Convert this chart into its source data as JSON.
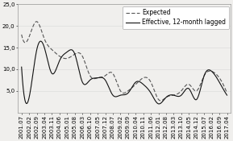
{
  "title": "",
  "xlabel": "",
  "ylabel": "",
  "ylim": [
    0,
    25
  ],
  "yticks": [
    5,
    10,
    15,
    20,
    25
  ],
  "ytick_labels": [
    "5,0",
    "10,0",
    "15,0",
    "20,0",
    "25,0"
  ],
  "background_color": "#f0efed",
  "legend_entries": [
    "Expected",
    "Effective, 12-month lagged"
  ],
  "x_labels": [
    "2001.07",
    "2002.02",
    "2002.09",
    "2003.04",
    "2003.11",
    "2004.06",
    "2005.01",
    "2005.08",
    "2006.03",
    "2006.10",
    "2007.05",
    "2007.12",
    "2008.07",
    "2009.02",
    "2009.09",
    "2010.04",
    "2010.11",
    "2011.06",
    "2012.01",
    "2012.08",
    "2013.03",
    "2013.10",
    "2014.05",
    "2014.12",
    "2015.07",
    "2016.02",
    "2016.09",
    "2017.04"
  ],
  "expected_x": [
    0,
    1,
    2,
    3,
    4,
    5,
    6,
    7,
    8,
    9,
    10,
    11,
    12,
    13,
    14,
    15,
    16,
    17,
    18,
    19,
    20,
    21,
    22,
    23,
    24,
    25,
    26,
    27
  ],
  "expected_y": [
    18.0,
    17.5,
    21.0,
    17.0,
    14.5,
    13.0,
    12.5,
    13.5,
    13.0,
    8.5,
    8.0,
    8.5,
    9.0,
    5.0,
    5.0,
    6.5,
    8.0,
    7.0,
    3.0,
    3.5,
    4.0,
    5.0,
    6.5,
    5.0,
    8.5,
    9.5,
    8.0,
    4.5
  ],
  "effective_x": [
    0,
    1,
    2,
    3,
    4,
    5,
    6,
    7,
    8,
    9,
    10,
    11,
    12,
    13,
    14,
    15,
    16,
    17,
    18,
    19,
    20,
    21,
    22,
    23,
    24,
    25,
    26,
    27
  ],
  "effective_y": [
    10.5,
    3.5,
    14.5,
    15.0,
    9.0,
    12.0,
    14.0,
    13.5,
    7.0,
    7.5,
    8.0,
    7.5,
    4.0,
    4.0,
    4.5,
    7.0,
    6.5,
    4.5,
    2.0,
    3.5,
    4.0,
    4.0,
    5.5,
    3.0,
    8.5,
    9.5,
    7.0,
    4.0
  ],
  "expected_color": "#555555",
  "effective_color": "#111111",
  "grid_color": "#d8d8d8",
  "tick_fontsize": 5.0,
  "legend_fontsize": 5.5,
  "line_width": 0.8
}
